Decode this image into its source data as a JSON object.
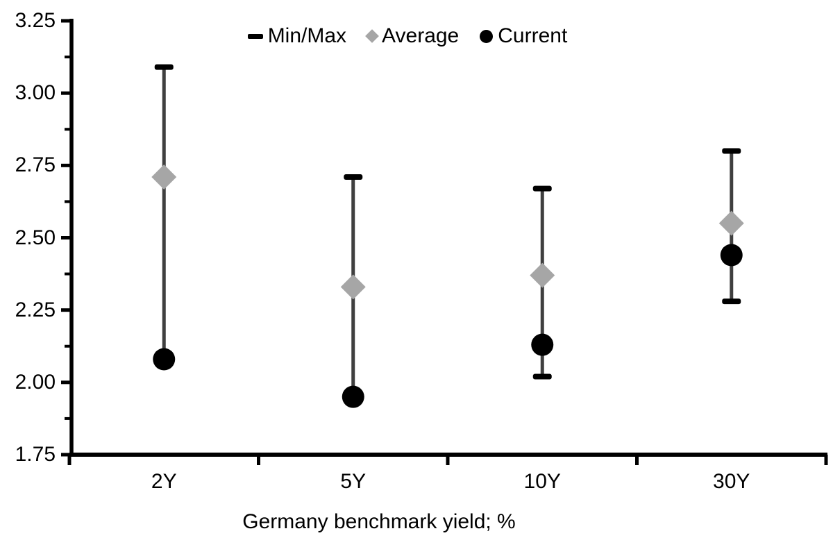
{
  "chart_data": {
    "type": "scatter",
    "variant": "min-max-range",
    "xlabel": "Germany benchmark yield; %",
    "ylim": [
      1.75,
      3.25
    ],
    "ytick_labels": [
      "3.25",
      "3.00",
      "2.75",
      "2.50",
      "2.25",
      "2.00",
      "1.75"
    ],
    "ytick_minor_step": 0.125,
    "grid": false,
    "legend_position": "top-center",
    "legend_labels": [
      "Min/Max",
      "Average",
      "Current"
    ],
    "categories": [
      "2Y",
      "5Y",
      "10Y",
      "30Y"
    ],
    "series": [
      {
        "name": "Min/Max",
        "marker": "dash",
        "color": "#000000",
        "min": [
          2.08,
          1.95,
          2.02,
          2.28
        ],
        "max": [
          3.09,
          2.71,
          2.67,
          2.8
        ]
      },
      {
        "name": "Average",
        "marker": "diamond",
        "color": "#a6a6a6",
        "values": [
          2.71,
          2.33,
          2.37,
          2.55
        ]
      },
      {
        "name": "Current",
        "marker": "circle",
        "color": "#000000",
        "values": [
          2.08,
          1.95,
          2.13,
          2.44
        ]
      }
    ],
    "connector_color": "#3f3f3f",
    "axis_color": "#000000",
    "text_color": "#000000",
    "background": "#ffffff"
  }
}
